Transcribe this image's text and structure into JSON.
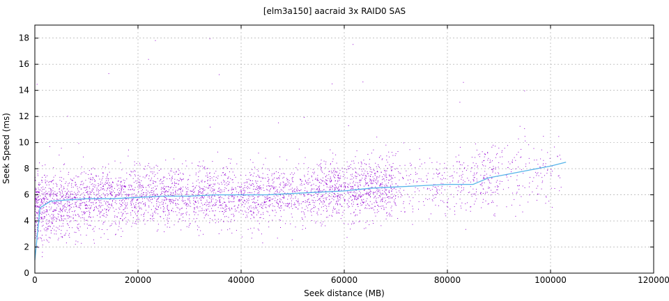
{
  "chart_data": {
    "type": "scatter",
    "title": "[elm3a150] aacraid 3x RAID0 SAS",
    "xlabel": "Seek distance (MB)",
    "ylabel": "Seek Speed (ms)",
    "xlim": [
      0,
      120000
    ],
    "ylim": [
      0,
      19
    ],
    "xticks": [
      0,
      20000,
      40000,
      60000,
      80000,
      100000,
      120000
    ],
    "yticks": [
      0,
      2,
      4,
      6,
      8,
      10,
      12,
      14,
      16,
      18
    ],
    "grid": true,
    "series": [
      {
        "kind": "points",
        "color": "#9400d3",
        "point_count_estimate": 25000,
        "description_of_density": [
          {
            "x": 0,
            "y_center": 5.0,
            "y_spread": 2.5
          },
          {
            "x": 10000,
            "y_center": 5.6,
            "y_spread": 2.2
          },
          {
            "x": 20000,
            "y_center": 5.8,
            "y_spread": 2.0
          },
          {
            "x": 30000,
            "y_center": 5.9,
            "y_spread": 2.0
          },
          {
            "x": 40000,
            "y_center": 6.0,
            "y_spread": 2.0
          },
          {
            "x": 50000,
            "y_center": 6.1,
            "y_spread": 2.1
          },
          {
            "x": 60000,
            "y_center": 6.3,
            "y_spread": 2.1
          },
          {
            "x": 70000,
            "y_center": 6.6,
            "y_spread": 2.2
          },
          {
            "x": 80000,
            "y_center": 6.8,
            "y_spread": 2.3
          },
          {
            "x": 90000,
            "y_center": 7.4,
            "y_spread": 2.4
          },
          {
            "x": 100000,
            "y_center": 7.8,
            "y_spread": 2.4
          }
        ]
      },
      {
        "kind": "line",
        "color": "#56b4e9",
        "x": [
          0,
          1000,
          3000,
          6000,
          10000,
          15000,
          20000,
          25000,
          30000,
          35000,
          40000,
          45000,
          50000,
          55000,
          60000,
          65000,
          70000,
          75000,
          80000,
          85000,
          88000,
          92000,
          96000,
          100000,
          103000
        ],
        "y": [
          1.0,
          5.0,
          5.5,
          5.6,
          5.7,
          5.7,
          5.8,
          5.9,
          5.9,
          6.0,
          6.0,
          6.0,
          6.1,
          6.2,
          6.3,
          6.5,
          6.6,
          6.7,
          6.8,
          6.8,
          7.3,
          7.6,
          7.9,
          8.2,
          8.5
        ]
      }
    ]
  }
}
